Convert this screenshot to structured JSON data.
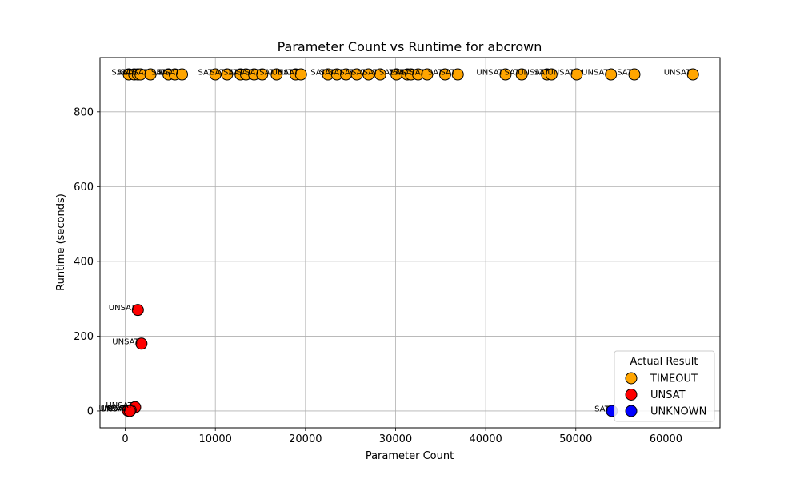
{
  "chart_data": {
    "type": "scatter",
    "title": "Parameter Count vs Runtime for abcrown",
    "xlabel": "Parameter Count",
    "ylabel": "Runtime (seconds)",
    "xlim": [
      -2800,
      66000
    ],
    "ylim": [
      -45,
      945
    ],
    "xticks": [
      0,
      10000,
      20000,
      30000,
      40000,
      50000,
      60000
    ],
    "yticks": [
      0,
      200,
      400,
      600,
      800
    ],
    "grid": true,
    "legend": {
      "title": "Actual Result",
      "position": "lower-right",
      "entries": [
        "TIMEOUT",
        "UNSAT",
        "UNKNOWN"
      ]
    },
    "colors": {
      "TIMEOUT": "#FFA500",
      "UNSAT": "#FF0000",
      "UNKNOWN": "#0000FF"
    },
    "series": [
      {
        "name": "TIMEOUT",
        "points": [
          {
            "x": 400,
            "y": 900,
            "label": "SAT"
          },
          {
            "x": 1000,
            "y": 900,
            "label": "SAT"
          },
          {
            "x": 1400,
            "y": 900,
            "label": "SAT"
          },
          {
            "x": 1700,
            "y": 900,
            "label": "SAT"
          },
          {
            "x": 2800,
            "y": 900,
            "label": "SAT"
          },
          {
            "x": 4800,
            "y": 900,
            "label": "SAT"
          },
          {
            "x": 5500,
            "y": 900,
            "label": "SAT"
          },
          {
            "x": 6300,
            "y": 900,
            "label": "UNSAT"
          },
          {
            "x": 10000,
            "y": 900,
            "label": "SAT"
          },
          {
            "x": 11300,
            "y": 900,
            "label": "SAT"
          },
          {
            "x": 12800,
            "y": 900,
            "label": "SAT"
          },
          {
            "x": 13400,
            "y": 900,
            "label": "SAT"
          },
          {
            "x": 14300,
            "y": 900,
            "label": "SAT"
          },
          {
            "x": 15200,
            "y": 900,
            "label": "SAT"
          },
          {
            "x": 16800,
            "y": 900,
            "label": "SAT"
          },
          {
            "x": 18900,
            "y": 900,
            "label": "SAT"
          },
          {
            "x": 19500,
            "y": 900,
            "label": "UNSAT"
          },
          {
            "x": 22500,
            "y": 900,
            "label": "SAT"
          },
          {
            "x": 23500,
            "y": 900,
            "label": "SAT"
          },
          {
            "x": 24500,
            "y": 900,
            "label": "SAT"
          },
          {
            "x": 25700,
            "y": 900,
            "label": "SAT"
          },
          {
            "x": 27000,
            "y": 900,
            "label": "SAT"
          },
          {
            "x": 28300,
            "y": 900,
            "label": "SAT"
          },
          {
            "x": 30100,
            "y": 900,
            "label": "SAT"
          },
          {
            "x": 31300,
            "y": 900,
            "label": "SAT"
          },
          {
            "x": 31700,
            "y": 900,
            "label": "SAT"
          },
          {
            "x": 32500,
            "y": 900,
            "label": "SAT"
          },
          {
            "x": 33500,
            "y": 900,
            "label": "SAT"
          },
          {
            "x": 35500,
            "y": 900,
            "label": "SAT"
          },
          {
            "x": 36900,
            "y": 900,
            "label": "SAT"
          },
          {
            "x": 42200,
            "y": 900,
            "label": "UNSAT"
          },
          {
            "x": 44000,
            "y": 900,
            "label": "SAT"
          },
          {
            "x": 46800,
            "y": 900,
            "label": "UNSAT"
          },
          {
            "x": 47300,
            "y": 900,
            "label": "SAT"
          },
          {
            "x": 50100,
            "y": 900,
            "label": "UNSAT"
          },
          {
            "x": 53900,
            "y": 900,
            "label": "UNSAT"
          },
          {
            "x": 56500,
            "y": 900,
            "label": "SAT"
          },
          {
            "x": 63000,
            "y": 900,
            "label": "UNSAT"
          }
        ]
      },
      {
        "name": "UNSAT",
        "points": [
          {
            "x": 1400,
            "y": 270,
            "label": "UNSAT"
          },
          {
            "x": 1800,
            "y": 180,
            "label": "UNSAT"
          },
          {
            "x": 1100,
            "y": 10,
            "label": "UNSAT"
          },
          {
            "x": 600,
            "y": 2,
            "label": "UNSAT"
          },
          {
            "x": 300,
            "y": 1,
            "label": "UNSAT"
          },
          {
            "x": 500,
            "y": 0,
            "label": "UNSAT"
          }
        ]
      },
      {
        "name": "UNKNOWN",
        "points": [
          {
            "x": 54000,
            "y": 0,
            "label": "SAT"
          }
        ]
      }
    ]
  }
}
